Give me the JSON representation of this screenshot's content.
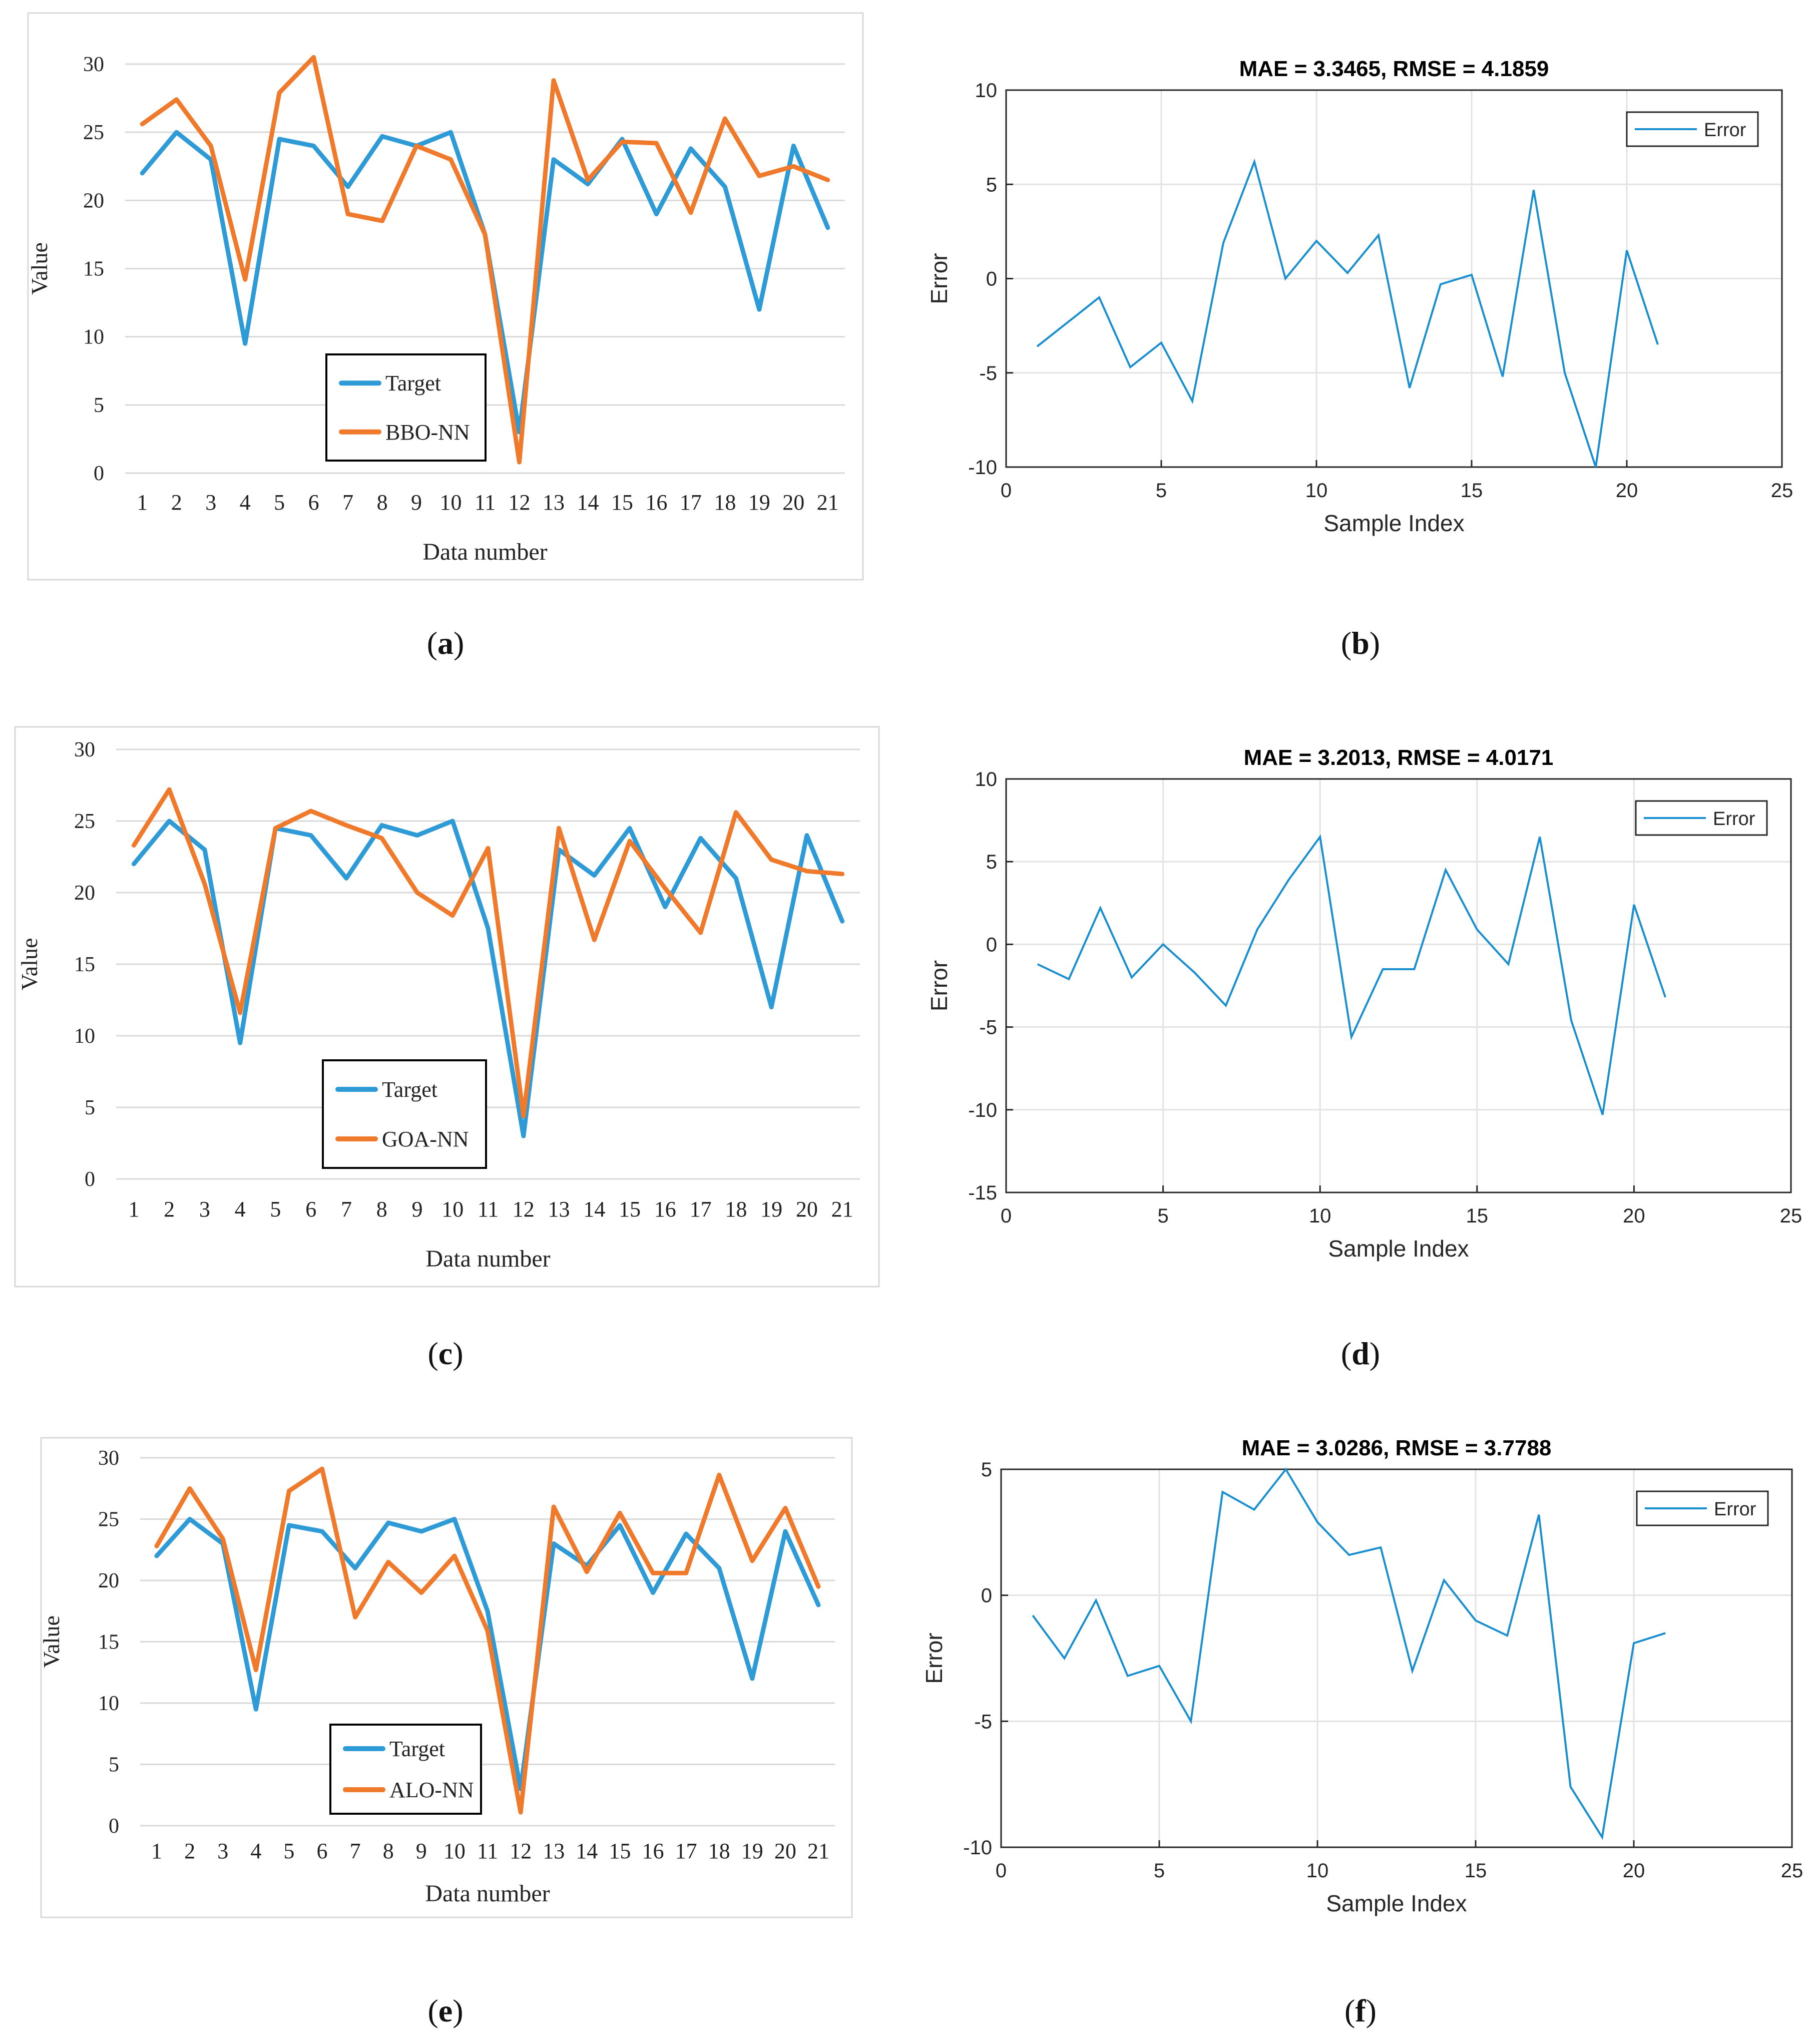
{
  "colors": {
    "target": "#2e9bd6",
    "nn": "#f07a2c",
    "error": "#1a8fd0",
    "grid_excel": "#d9d9d9",
    "grid_matlab": "#e3e3e3",
    "axis_matlab": "#262626",
    "frame_excel": "#d9d9d9"
  },
  "chart_data": [
    {
      "panel": "a",
      "panel_label": "a",
      "type": "line",
      "title": "",
      "xlabel": "Data number",
      "ylabel": "Value",
      "ylim": [
        0,
        30
      ],
      "yticks": [
        0,
        5,
        10,
        15,
        20,
        25,
        30
      ],
      "categories": [
        "1",
        "2",
        "3",
        "4",
        "5",
        "6",
        "7",
        "8",
        "9",
        "10",
        "11",
        "12",
        "13",
        "14",
        "15",
        "16",
        "17",
        "18",
        "19",
        "20",
        "21"
      ],
      "legend_position": "bottom-left",
      "series": [
        {
          "name": "Target",
          "values": [
            22,
            25,
            23,
            9.5,
            24.5,
            24,
            21,
            24.7,
            24,
            25,
            17.5,
            3,
            23,
            21.2,
            24.5,
            19,
            23.8,
            21,
            12,
            24,
            18
          ]
        },
        {
          "name": "BBO-NN",
          "values": [
            25.6,
            27.4,
            24,
            14.2,
            27.9,
            30.5,
            19,
            18.5,
            24,
            23,
            17.5,
            0.8,
            28.8,
            21.5,
            24.3,
            24.2,
            19.1,
            26,
            21.8,
            22.5,
            21.5
          ]
        }
      ]
    },
    {
      "panel": "b",
      "panel_label": "b",
      "type": "line",
      "title": "MAE = 3.3465, RMSE = 4.1859",
      "xlabel": "Sample Index",
      "ylabel": "Error",
      "xlim": [
        0,
        25
      ],
      "ylim": [
        -10,
        10
      ],
      "xticks": [
        0,
        5,
        10,
        15,
        20,
        25
      ],
      "yticks": [
        -10,
        -5,
        0,
        5,
        10
      ],
      "legend_position": "top-right",
      "series": [
        {
          "name": "Error",
          "x": [
            1,
            2,
            3,
            4,
            5,
            6,
            7,
            8,
            9,
            10,
            11,
            12,
            13,
            14,
            15,
            16,
            17,
            18,
            19,
            20,
            21
          ],
          "values": [
            -3.6,
            -2.3,
            -1.0,
            -4.7,
            -3.4,
            -6.5,
            1.9,
            6.2,
            0.0,
            2.0,
            0.3,
            2.3,
            -5.8,
            -0.3,
            0.2,
            -5.2,
            4.7,
            -5.0,
            -10.0,
            1.5,
            -3.5
          ]
        }
      ]
    },
    {
      "panel": "c",
      "panel_label": "c",
      "type": "line",
      "title": "",
      "xlabel": "Data number",
      "ylabel": "Value",
      "ylim": [
        0,
        30
      ],
      "yticks": [
        0,
        5,
        10,
        15,
        20,
        25,
        30
      ],
      "categories": [
        "1",
        "2",
        "3",
        "4",
        "5",
        "6",
        "7",
        "8",
        "9",
        "10",
        "11",
        "12",
        "13",
        "14",
        "15",
        "16",
        "17",
        "18",
        "19",
        "20",
        "21"
      ],
      "legend_position": "bottom-center",
      "series": [
        {
          "name": "Target",
          "values": [
            22,
            25,
            23,
            9.5,
            24.5,
            24,
            21,
            24.7,
            24,
            25,
            17.5,
            3,
            23,
            21.2,
            24.5,
            19,
            23.8,
            21,
            12,
            24,
            18
          ]
        },
        {
          "name": "GOA-NN",
          "values": [
            23.3,
            27.2,
            20.6,
            11.6,
            24.5,
            25.7,
            24.7,
            23.8,
            20,
            18.4,
            23.1,
            4.4,
            24.5,
            16.7,
            23.6,
            20.3,
            17.2,
            25.6,
            22.3,
            21.5,
            21.3
          ]
        }
      ]
    },
    {
      "panel": "d",
      "panel_label": "d",
      "type": "line",
      "title": "MAE = 3.2013, RMSE = 4.0171",
      "xlabel": "Sample Index",
      "ylabel": "Error",
      "xlim": [
        0,
        25
      ],
      "ylim": [
        -15,
        10
      ],
      "xticks": [
        0,
        5,
        10,
        15,
        20,
        25
      ],
      "yticks": [
        -15,
        -10,
        -5,
        0,
        5,
        10
      ],
      "legend_position": "top-right",
      "series": [
        {
          "name": "Error",
          "x": [
            1,
            2,
            3,
            4,
            5,
            6,
            7,
            8,
            9,
            10,
            11,
            12,
            13,
            14,
            15,
            16,
            17,
            18,
            19,
            20,
            21
          ],
          "values": [
            -1.2,
            -2.1,
            2.2,
            -2.0,
            0.0,
            -1.7,
            -3.7,
            0.9,
            3.9,
            6.5,
            -5.6,
            -1.5,
            -1.5,
            4.5,
            0.9,
            -1.2,
            6.5,
            -4.6,
            -10.3,
            2.4,
            -3.2
          ]
        }
      ]
    },
    {
      "panel": "e",
      "panel_label": "e",
      "type": "line",
      "title": "",
      "xlabel": "Data number",
      "ylabel": "Value",
      "ylim": [
        0,
        30
      ],
      "yticks": [
        0,
        5,
        10,
        15,
        20,
        25,
        30
      ],
      "categories": [
        "1",
        "2",
        "3",
        "4",
        "5",
        "6",
        "7",
        "8",
        "9",
        "10",
        "11",
        "12",
        "13",
        "14",
        "15",
        "16",
        "17",
        "18",
        "19",
        "20",
        "21"
      ],
      "legend_position": "bottom-center",
      "series": [
        {
          "name": "Target",
          "values": [
            22,
            25,
            23,
            9.5,
            24.5,
            24,
            21,
            24.7,
            24,
            25,
            17.5,
            3,
            23,
            21.2,
            24.5,
            19,
            23.8,
            21,
            12,
            24,
            18
          ]
        },
        {
          "name": "ALO-NN",
          "values": [
            22.8,
            27.5,
            23.4,
            12.7,
            27.3,
            29.1,
            17,
            21.5,
            19,
            22,
            15.9,
            1.1,
            26,
            20.7,
            25.5,
            20.6,
            20.6,
            28.6,
            21.6,
            25.9,
            19.5
          ]
        }
      ]
    },
    {
      "panel": "f",
      "panel_label": "f",
      "type": "line",
      "title": "MAE = 3.0286, RMSE = 3.7788",
      "xlabel": "Sample Index",
      "ylabel": "Error",
      "xlim": [
        0,
        25
      ],
      "ylim": [
        -10,
        5
      ],
      "xticks": [
        0,
        5,
        10,
        15,
        20,
        25
      ],
      "yticks": [
        -10,
        -5,
        0,
        5
      ],
      "legend_position": "top-right",
      "series": [
        {
          "name": "Error",
          "x": [
            1,
            2,
            3,
            4,
            5,
            6,
            7,
            8,
            9,
            10,
            11,
            12,
            13,
            14,
            15,
            16,
            17,
            18,
            19,
            20,
            21
          ],
          "values": [
            -0.8,
            -2.5,
            -0.2,
            -3.2,
            -2.8,
            -5.0,
            4.1,
            3.4,
            5.0,
            2.9,
            1.6,
            1.9,
            -3.0,
            0.6,
            -1.0,
            -1.6,
            3.2,
            -7.6,
            -9.6,
            -1.9,
            -1.5
          ]
        }
      ]
    }
  ]
}
